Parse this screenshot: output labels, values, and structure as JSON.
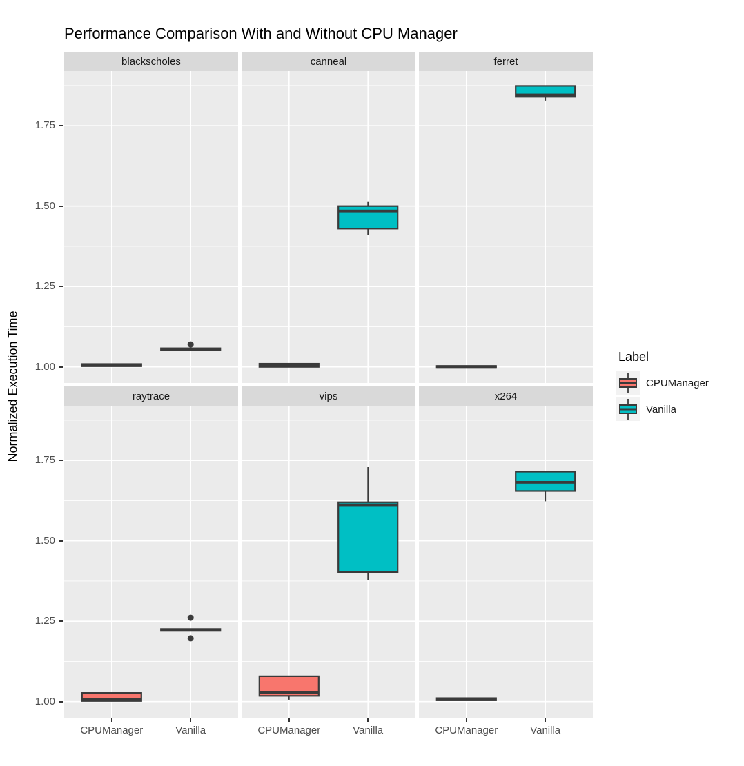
{
  "title": "Performance Comparison With and Without CPU Manager",
  "y_axis": {
    "title": "Normalized Execution Time",
    "tick_labels": [
      "1.75",
      "1.50",
      "1.25",
      "1.00"
    ]
  },
  "x_axis": {
    "categories": [
      "CPUManager",
      "Vanilla"
    ]
  },
  "legend": {
    "title": "Label",
    "items": [
      {
        "label": "CPUManager",
        "color": "#F8766D"
      },
      {
        "label": "Vanilla",
        "color": "#00BFC4"
      }
    ]
  },
  "colors": {
    "panel_background": "#EBEBEB",
    "strip_background": "#D9D9D9",
    "gridline": "#FFFFFF",
    "box_stroke": "#3A3A3A",
    "axis_text": "#4D4D4D",
    "cpumanager_fill": "#F8766D",
    "vanilla_fill": "#00BFC4"
  },
  "chart_data": {
    "type": "boxplot",
    "title": "Performance Comparison With and Without CPU Manager",
    "ylabel": "Normalized Execution Time",
    "xlabel": "",
    "groups": [
      "CPUManager",
      "Vanilla"
    ],
    "facet_layout": {
      "rows": 2,
      "cols": 3
    },
    "legend_position": "right",
    "grid": "on",
    "ylim": [
      0.95,
      1.92
    ],
    "yticks_major": [
      1.0,
      1.25,
      1.5,
      1.75
    ],
    "yticks_minor": [
      1.125,
      1.375,
      1.625,
      1.875
    ],
    "facets": [
      {
        "name": "blackscholes",
        "boxes": [
          {
            "group": "CPUManager",
            "min": 1.002,
            "q1": 1.002,
            "median": 1.005,
            "q3": 1.009,
            "max": 1.009,
            "outliers": []
          },
          {
            "group": "Vanilla",
            "min": 1.052,
            "q1": 1.052,
            "median": 1.055,
            "q3": 1.058,
            "max": 1.058,
            "outliers": [
              1.07
            ]
          }
        ]
      },
      {
        "name": "canneal",
        "boxes": [
          {
            "group": "CPUManager",
            "min": 1.0,
            "q1": 1.0,
            "median": 1.005,
            "q3": 1.01,
            "max": 1.01,
            "outliers": []
          },
          {
            "group": "Vanilla",
            "min": 1.41,
            "q1": 1.43,
            "median": 1.485,
            "q3": 1.5,
            "max": 1.515,
            "outliers": []
          }
        ]
      },
      {
        "name": "ferret",
        "boxes": [
          {
            "group": "CPUManager",
            "min": 0.999,
            "q1": 0.999,
            "median": 1.001,
            "q3": 1.003,
            "max": 1.003,
            "outliers": []
          },
          {
            "group": "Vanilla",
            "min": 1.828,
            "q1": 1.84,
            "median": 1.846,
            "q3": 1.874,
            "max": 1.874,
            "outliers": []
          }
        ]
      },
      {
        "name": "raytrace",
        "boxes": [
          {
            "group": "CPUManager",
            "min": 1.002,
            "q1": 1.002,
            "median": 1.007,
            "q3": 1.027,
            "max": 1.027,
            "outliers": []
          },
          {
            "group": "Vanilla",
            "min": 1.22,
            "q1": 1.22,
            "median": 1.223,
            "q3": 1.226,
            "max": 1.226,
            "outliers": [
              1.261,
              1.197
            ]
          }
        ]
      },
      {
        "name": "vips",
        "boxes": [
          {
            "group": "CPUManager",
            "min": 1.006,
            "q1": 1.018,
            "median": 1.028,
            "q3": 1.079,
            "max": 1.079,
            "outliers": []
          },
          {
            "group": "Vanilla",
            "min": 1.379,
            "q1": 1.403,
            "median": 1.612,
            "q3": 1.62,
            "max": 1.73,
            "outliers": []
          }
        ]
      },
      {
        "name": "x264",
        "boxes": [
          {
            "group": "CPUManager",
            "min": 1.004,
            "q1": 1.004,
            "median": 1.007,
            "q3": 1.011,
            "max": 1.011,
            "outliers": []
          },
          {
            "group": "Vanilla",
            "min": 1.623,
            "q1": 1.655,
            "median": 1.682,
            "q3": 1.715,
            "max": 1.715,
            "outliers": []
          }
        ]
      }
    ]
  }
}
